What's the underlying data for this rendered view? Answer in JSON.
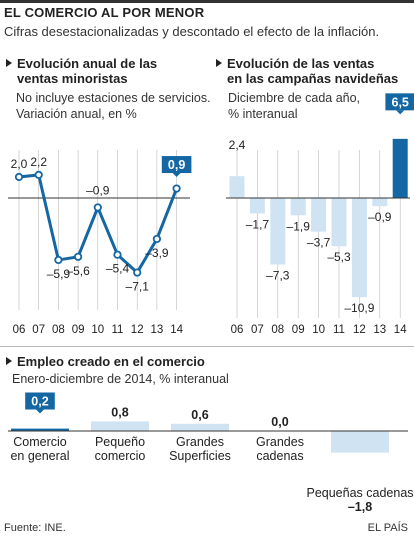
{
  "header": {
    "title": "EL COMERCIO AL POR MENOR",
    "subtitle": "Cifras desestacionalizadas y descontado el efecto de la inflación."
  },
  "footer": {
    "source": "Fuente: INE.",
    "credit": "EL PAÍS"
  },
  "colors": {
    "accent": "#1467a3",
    "light": "#cfe3f2",
    "grid": "#bbbbbb"
  },
  "chart_data": [
    {
      "type": "line",
      "title_lines": [
        "Evolución anual de las",
        "ventas minoristas"
      ],
      "subtitle_lines": [
        "No incluye estaciones de servicios.",
        "Variación anual, en %"
      ],
      "categories": [
        "06",
        "07",
        "08",
        "09",
        "10",
        "11",
        "12",
        "13",
        "14"
      ],
      "values": [
        2.0,
        2.2,
        -5.9,
        -5.6,
        -0.9,
        -5.4,
        -7.1,
        -3.9,
        0.9
      ],
      "labels": [
        "2,0",
        "2,2",
        "–5,9",
        "–5,6",
        "–0,9",
        "–5,4",
        "–7,1",
        "–3,9",
        "0,9"
      ],
      "highlight_index": 8
    },
    {
      "type": "bar",
      "title_lines": [
        "Evolución de las ventas",
        "en las campañas navideñas"
      ],
      "subtitle_lines": [
        "Diciembre de cada año,",
        "% interanual"
      ],
      "categories": [
        "06",
        "07",
        "08",
        "09",
        "10",
        "11",
        "12",
        "13",
        "14"
      ],
      "values": [
        2.4,
        -1.7,
        -7.3,
        -1.9,
        -3.7,
        -5.3,
        -10.9,
        -0.9,
        6.5
      ],
      "labels": [
        "2,4",
        "–1,7",
        "–7,3",
        "–1,9",
        "–3,7",
        "–5,3",
        "–10,9",
        "–0,9",
        "6,5"
      ],
      "highlight_index": 8
    },
    {
      "type": "bar",
      "title_lines": [
        "Empleo creado en el comercio"
      ],
      "subtitle_lines": [
        "Enero-diciembre de 2014, % interanual"
      ],
      "categories": [
        [
          "Comercio",
          "en general"
        ],
        [
          "Pequeño",
          "comercio"
        ],
        [
          "Grandes",
          "Superficies"
        ],
        [
          "Grandes",
          "cadenas"
        ],
        [
          "Pequeñas cadenas"
        ]
      ],
      "values": [
        0.2,
        0.8,
        0.6,
        0.0,
        -1.8
      ],
      "labels": [
        "0,2",
        "0,8",
        "0,6",
        "0,0",
        "–1,8"
      ],
      "highlight_index": 0
    }
  ]
}
